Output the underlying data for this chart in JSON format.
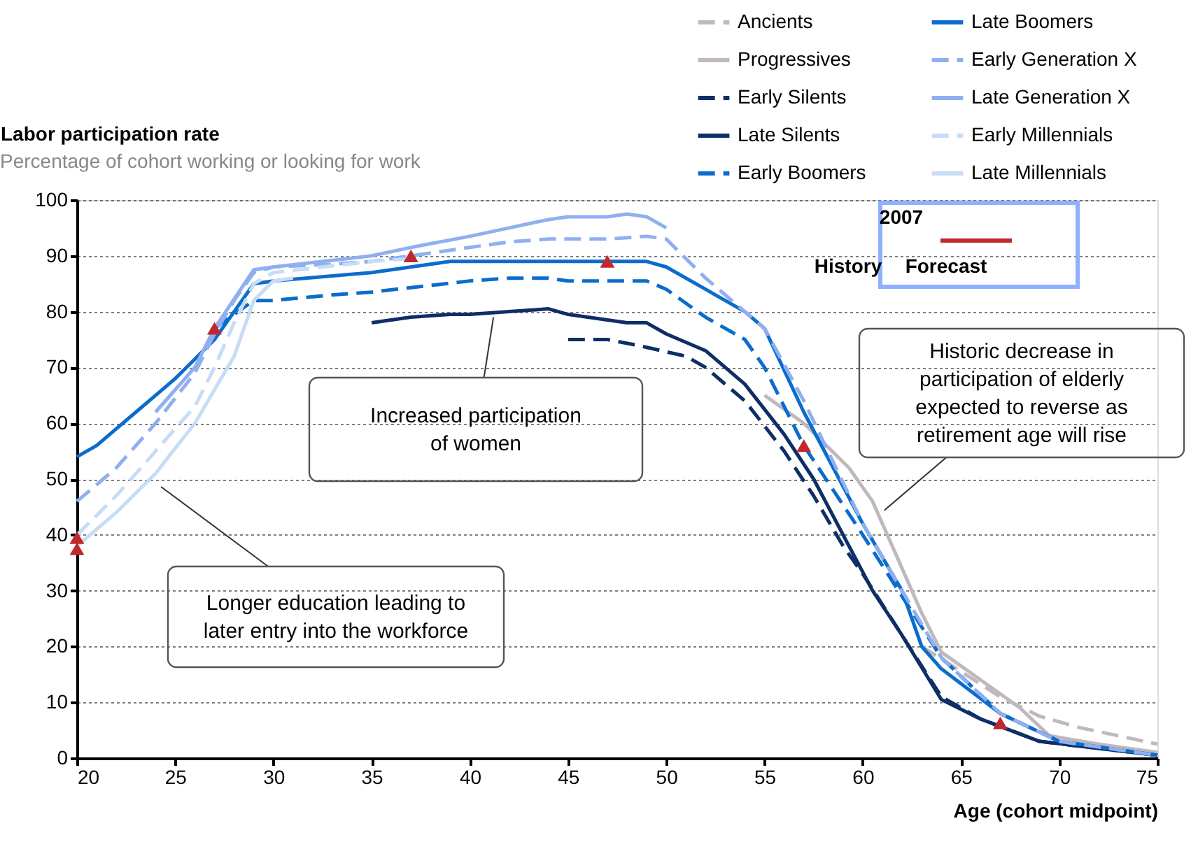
{
  "chart_data": {
    "type": "line",
    "ylabel": "Labor participation rate",
    "subtitle": "Percentage of cohort working or looking for work",
    "xlabel": "Age (cohort midpoint)",
    "xlim": [
      20,
      75
    ],
    "xticks": [
      20,
      25,
      30,
      35,
      40,
      45,
      50,
      55,
      60,
      65,
      70,
      75
    ],
    "ylim": [
      0,
      100
    ],
    "yticks": [
      0,
      10,
      20,
      30,
      40,
      50,
      60,
      70,
      80,
      90,
      100
    ],
    "grid": "y",
    "legend": "top right",
    "marker": "none",
    "annotations": [
      {
        "text": "Increased participation\nof women",
        "x": 41.2,
        "y": 79
      },
      "Longer education leading to\nlater entry into the workforce",
      {
        "text": "Historic decrease in\nparticipation of elderly\nexpected to reverse as\nretirement age will rise",
        "x": 61.1,
        "y": 44.4
      },
      "2007",
      "History",
      "Forecast"
    ],
    "series": [
      {
        "name": "Ancients",
        "color": "#c0b8bc",
        "line_style": "dashed",
        "x": [
          63,
          65,
          67,
          69,
          71,
          73,
          75
        ],
        "values": [
          20,
          15.5,
          11,
          7.5,
          5.5,
          4,
          2.5
        ]
      },
      {
        "name": "Progressives",
        "color": "#c0b8bc",
        "line_style": "solid",
        "x": [
          55,
          57,
          59.3,
          60.5,
          61.5,
          63,
          64,
          66,
          68,
          69.5,
          72,
          75
        ],
        "values": [
          65,
          60,
          52,
          46,
          38,
          26,
          19,
          14,
          9,
          4,
          2.5,
          1
        ]
      },
      {
        "name": "Early Silents",
        "color": "#0d2f66",
        "line_style": "dashed",
        "x": [
          45,
          47,
          48.5,
          51,
          52,
          54,
          56,
          57.5,
          59,
          60,
          62,
          64,
          66,
          69,
          75
        ],
        "values": [
          75,
          75,
          74,
          72,
          70,
          64,
          55,
          47,
          38,
          33,
          22,
          11,
          7,
          3,
          0.5
        ]
      },
      {
        "name": "Late Silents",
        "color": "#0d2f66",
        "line_style": "solid",
        "x": [
          35,
          37,
          39,
          40,
          42,
          44,
          45,
          46,
          47,
          48,
          49,
          50,
          52,
          54,
          56,
          57.5,
          59,
          60.5,
          62,
          64,
          66,
          69,
          75
        ],
        "values": [
          78,
          79,
          79.5,
          79.5,
          80,
          80.5,
          79.5,
          79,
          78.5,
          78,
          78,
          76,
          73,
          67,
          58,
          50,
          40,
          30,
          22,
          10.5,
          7,
          3,
          0.5
        ]
      },
      {
        "name": "Early Boomers",
        "color": "#0b6ccc",
        "line_style": "dashed",
        "x": [
          27,
          29,
          30,
          33,
          35,
          40,
          42,
          44,
          45,
          47,
          49,
          50,
          52,
          54,
          55,
          57,
          60,
          62,
          64,
          67,
          70,
          75
        ],
        "values": [
          77,
          82,
          82,
          83,
          83.5,
          85.5,
          86,
          86,
          85.5,
          85.5,
          85.5,
          84,
          79,
          75,
          70,
          56,
          40,
          29,
          18,
          8,
          3,
          0.5
        ]
      },
      {
        "name": "Late Boomers",
        "color": "#0b6ccc",
        "line_style": "solid",
        "x": [
          20,
          21,
          22,
          23,
          24,
          25,
          26,
          27,
          28,
          29,
          30,
          35,
          37,
          39,
          40,
          42,
          45,
          47,
          49,
          50,
          52,
          54,
          55,
          57,
          60,
          62,
          63,
          64,
          67,
          70,
          73,
          75
        ],
        "values": [
          54,
          56,
          59,
          62,
          65,
          68,
          71.5,
          75,
          80,
          85,
          85.5,
          87,
          88,
          89,
          89,
          89,
          89,
          89,
          89,
          88,
          84,
          80,
          77,
          62,
          42,
          30,
          20,
          16,
          8,
          3,
          1.5,
          0.5
        ]
      },
      {
        "name": "Early Generation X",
        "color": "#8fb0f0",
        "line_style": "dashed",
        "x": [
          20,
          22,
          24,
          26,
          27,
          28,
          29,
          30,
          33,
          35,
          37,
          40,
          42,
          44,
          45,
          47,
          49,
          50,
          52,
          54,
          55,
          57,
          60,
          62,
          64,
          67,
          70,
          75
        ],
        "values": [
          46,
          52,
          60,
          69,
          76,
          82,
          87,
          88,
          88.5,
          89,
          90,
          91.5,
          92.5,
          93,
          93,
          93,
          93.5,
          93,
          86,
          80,
          77,
          64,
          42,
          30,
          18,
          8,
          3,
          0.5
        ]
      },
      {
        "name": "Late Generation X",
        "color": "#8fb0f0",
        "line_style": "solid",
        "x": [
          24,
          26,
          27,
          29,
          30,
          35,
          37,
          40,
          42,
          44,
          45,
          47,
          48,
          49,
          50
        ],
        "values": [
          62,
          70,
          77,
          87.5,
          88,
          90,
          91.5,
          93.5,
          95,
          96.5,
          97,
          97,
          97.5,
          97,
          95
        ]
      },
      {
        "name": "Early Millennials",
        "color": "#c7dcf5",
        "line_style": "dashed",
        "x": [
          20,
          22,
          24,
          26,
          27,
          28,
          29,
          30,
          35,
          37
        ],
        "values": [
          40,
          47,
          55,
          63,
          70,
          78,
          85,
          87,
          89,
          89.5
        ]
      },
      {
        "name": "Late Millennials",
        "color": "#c7dcf5",
        "line_style": "solid",
        "x": [
          20,
          22,
          24,
          26,
          28,
          29,
          30,
          31
        ],
        "values": [
          38,
          44,
          51,
          60,
          72,
          82,
          85.5,
          86
        ]
      },
      {
        "type": "scatter",
        "color": "#c0282d",
        "marker": "triangle",
        "x": [
          20,
          20,
          27,
          37,
          47,
          57,
          67
        ],
        "values": [
          37.5,
          39.5,
          77,
          90,
          89,
          56,
          6.3
        ]
      }
    ]
  }
}
